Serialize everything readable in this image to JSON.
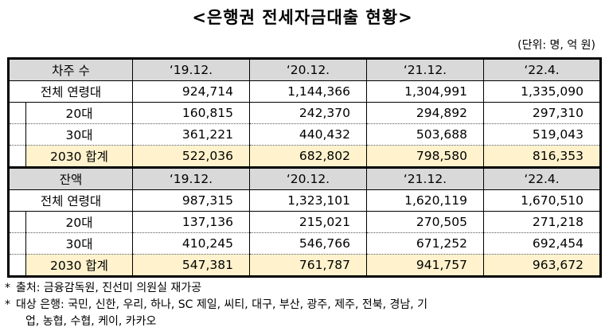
{
  "title": "<은행권 전세자금대출 현황>",
  "unit": "(단위: 명, 억 원)",
  "sections": [
    {
      "header": "차주 수",
      "years": [
        "‘19.12.",
        "‘20.12.",
        "‘21.12.",
        "‘22.4."
      ],
      "total": {
        "label": "전체 연령대",
        "values": [
          "924,714",
          "1,144,366",
          "1,304,991",
          "1,335,090"
        ]
      },
      "rows": [
        {
          "label": "20대",
          "values": [
            "160,815",
            "242,370",
            "294,892",
            "297,310"
          ]
        },
        {
          "label": "30대",
          "values": [
            "361,221",
            "440,432",
            "503,688",
            "519,043"
          ]
        }
      ],
      "sum": {
        "label": "2030 합계",
        "values": [
          "522,036",
          "682,802",
          "798,580",
          "816,353"
        ]
      }
    },
    {
      "header": "잔액",
      "years": [
        "‘19.12.",
        "‘20.12.",
        "‘21.12.",
        "‘22.4."
      ],
      "total": {
        "label": "전체 연령대",
        "values": [
          "987,315",
          "1,323,101",
          "1,620,119",
          "1,670,510"
        ]
      },
      "rows": [
        {
          "label": "20대",
          "values": [
            "137,136",
            "215,021",
            "270,505",
            "271,218"
          ]
        },
        {
          "label": "30대",
          "values": [
            "410,245",
            "546,766",
            "671,252",
            "692,454"
          ]
        }
      ],
      "sum": {
        "label": "2030 합계",
        "values": [
          "547,381",
          "761,787",
          "941,757",
          "963,672"
        ]
      }
    }
  ],
  "notes": {
    "star": "*",
    "source": "출처: 금융감독원, 진선미 의원실 재가공",
    "banks_line1": "대상 은행: 국민, 신한, 우리, 하나, SC 제일, 씨티, 대구, 부산, 광주, 제주, 전북, 경남, 기",
    "banks_line2": "업, 농협, 수협, 케이, 카카오"
  }
}
